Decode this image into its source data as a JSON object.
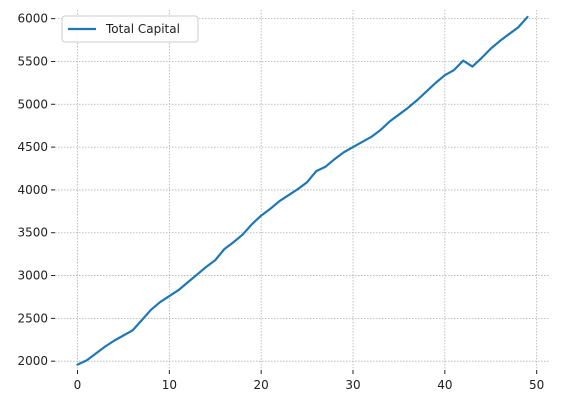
{
  "chart_data": {
    "type": "line",
    "xlabel": "",
    "ylabel": "",
    "xlim": [
      -2.45,
      51.45
    ],
    "ylim": [
      1897,
      6101
    ],
    "x_ticks": [
      0,
      10,
      20,
      30,
      40,
      50
    ],
    "y_ticks": [
      2000,
      2500,
      3000,
      3500,
      4000,
      4500,
      5000,
      5500,
      6000
    ],
    "grid": true,
    "legend": {
      "position": "upper-left"
    },
    "series": [
      {
        "name": "Total Capital",
        "color": "#1f77b4",
        "x": [
          0,
          1,
          2,
          3,
          4,
          5,
          6,
          7,
          8,
          9,
          10,
          11,
          12,
          13,
          14,
          15,
          16,
          17,
          18,
          19,
          20,
          21,
          22,
          23,
          24,
          25,
          26,
          27,
          28,
          29,
          30,
          31,
          32,
          33,
          34,
          35,
          36,
          37,
          38,
          39,
          40,
          41,
          42,
          43,
          44,
          45,
          46,
          47,
          48,
          49
        ],
        "y": [
          1960,
          2010,
          2090,
          2170,
          2240,
          2300,
          2360,
          2480,
          2600,
          2690,
          2760,
          2830,
          2920,
          3010,
          3100,
          3180,
          3310,
          3390,
          3480,
          3600,
          3700,
          3780,
          3870,
          3940,
          4010,
          4090,
          4220,
          4270,
          4360,
          4440,
          4500,
          4560,
          4620,
          4700,
          4800,
          4880,
          4960,
          5050,
          5150,
          5250,
          5340,
          5400,
          5510,
          5440,
          5540,
          5650,
          5740,
          5820,
          5900,
          6020
        ]
      }
    ]
  }
}
